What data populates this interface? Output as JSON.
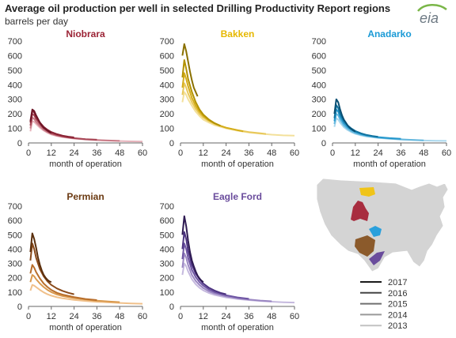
{
  "title": "Average oil production per well in selected Drilling Productivity Report regions",
  "subtitle": "barrels per day",
  "logo_text": "eia",
  "legend": {
    "years": [
      "2017",
      "2016",
      "2015",
      "2014",
      "2013"
    ],
    "colors": [
      "#1a1a1a",
      "#444444",
      "#6f6f6f",
      "#999999",
      "#c2c2c2"
    ]
  },
  "chart_data": [
    {
      "type": "line",
      "title": "Niobrara",
      "title_color": "#9b2335",
      "xlabel": "month of operation",
      "ylabel": "barrels per day",
      "xlim": [
        0,
        60
      ],
      "ylim": [
        0,
        700
      ],
      "xticks": [
        0,
        12,
        24,
        36,
        48,
        60
      ],
      "yticks": [
        0,
        100,
        200,
        300,
        400,
        500,
        600,
        700
      ],
      "series": [
        {
          "name": "2017",
          "color": "#6d1526",
          "x": [
            1,
            2,
            3,
            4,
            5,
            6,
            7,
            8,
            9,
            10,
            11,
            12
          ],
          "y": [
            150,
            230,
            220,
            190,
            165,
            140,
            120,
            105,
            95,
            85,
            75,
            68
          ]
        },
        {
          "name": "2016",
          "color": "#8a2233",
          "x": [
            1,
            2,
            3,
            4,
            6,
            8,
            10,
            12,
            15,
            18,
            21,
            24
          ],
          "y": [
            140,
            220,
            210,
            180,
            140,
            110,
            90,
            75,
            60,
            50,
            43,
            38
          ]
        },
        {
          "name": "2015",
          "color": "#a84656",
          "x": [
            1,
            2,
            3,
            4,
            6,
            8,
            10,
            12,
            15,
            18,
            21,
            24,
            30,
            36
          ],
          "y": [
            120,
            200,
            190,
            165,
            130,
            100,
            82,
            68,
            55,
            45,
            38,
            33,
            26,
            22
          ]
        },
        {
          "name": "2014",
          "color": "#c97b87",
          "x": [
            1,
            2,
            3,
            4,
            6,
            8,
            10,
            12,
            15,
            18,
            24,
            30,
            36,
            42,
            48
          ],
          "y": [
            100,
            175,
            165,
            145,
            115,
            90,
            75,
            62,
            50,
            42,
            32,
            25,
            20,
            17,
            14
          ]
        },
        {
          "name": "2013",
          "color": "#e6b3bb",
          "x": [
            1,
            2,
            3,
            4,
            6,
            8,
            10,
            12,
            15,
            18,
            24,
            30,
            36,
            42,
            48,
            54,
            60
          ],
          "y": [
            80,
            150,
            145,
            130,
            105,
            85,
            70,
            58,
            47,
            40,
            30,
            24,
            19,
            16,
            13,
            11,
            10
          ]
        }
      ]
    },
    {
      "type": "line",
      "title": "Bakken",
      "title_color": "#e6b800",
      "xlabel": "month of operation",
      "ylabel": "barrels per day",
      "xlim": [
        0,
        60
      ],
      "ylim": [
        0,
        700
      ],
      "xticks": [
        0,
        12,
        24,
        36,
        48,
        60
      ],
      "yticks": [
        0,
        100,
        200,
        300,
        400,
        500,
        600,
        700
      ],
      "series": [
        {
          "name": "2017",
          "color": "#8a7000",
          "x": [
            1,
            2,
            3,
            4,
            5,
            6,
            7,
            8,
            9
          ],
          "y": [
            600,
            680,
            630,
            560,
            490,
            430,
            380,
            350,
            320
          ]
        },
        {
          "name": "2016",
          "color": "#b39200",
          "x": [
            1,
            2,
            3,
            4,
            6,
            8,
            10,
            12,
            15,
            18,
            21
          ],
          "y": [
            450,
            570,
            510,
            440,
            350,
            280,
            230,
            195,
            160,
            135,
            118
          ]
        },
        {
          "name": "2015",
          "color": "#d4ad1a",
          "x": [
            1,
            2,
            3,
            4,
            6,
            8,
            10,
            12,
            15,
            18,
            21,
            24,
            30,
            33
          ],
          "y": [
            380,
            480,
            440,
            390,
            310,
            255,
            215,
            185,
            155,
            135,
            118,
            105,
            88,
            80
          ]
        },
        {
          "name": "2014",
          "color": "#e8c85a",
          "x": [
            1,
            2,
            3,
            4,
            6,
            8,
            10,
            12,
            15,
            18,
            24,
            30,
            36,
            42,
            45
          ],
          "y": [
            330,
            410,
            380,
            340,
            280,
            235,
            200,
            175,
            150,
            130,
            105,
            88,
            75,
            66,
            62
          ]
        },
        {
          "name": "2013",
          "color": "#f3e09a",
          "x": [
            1,
            2,
            3,
            4,
            6,
            8,
            10,
            12,
            15,
            18,
            24,
            30,
            36,
            42,
            48,
            54,
            60
          ],
          "y": [
            280,
            350,
            330,
            300,
            255,
            215,
            185,
            160,
            140,
            122,
            100,
            84,
            72,
            64,
            57,
            52,
            50
          ]
        }
      ]
    },
    {
      "type": "line",
      "title": "Anadarko",
      "title_color": "#1a9ad6",
      "xlabel": "month of operation",
      "ylabel": "barrels per day",
      "xlim": [
        0,
        60
      ],
      "ylim": [
        0,
        700
      ],
      "xticks": [
        0,
        12,
        24,
        36,
        48,
        60
      ],
      "yticks": [
        0,
        100,
        200,
        300,
        400,
        500,
        600,
        700
      ],
      "series": [
        {
          "name": "2017",
          "color": "#0a4f73",
          "x": [
            1,
            2,
            3,
            4,
            5,
            6,
            7,
            8,
            9,
            10,
            11,
            12
          ],
          "y": [
            200,
            300,
            280,
            230,
            190,
            160,
            140,
            120,
            105,
            95,
            85,
            78
          ]
        },
        {
          "name": "2016",
          "color": "#11739f",
          "x": [
            1,
            2,
            3,
            4,
            6,
            8,
            10,
            12,
            15,
            18,
            21,
            24
          ],
          "y": [
            170,
            260,
            240,
            200,
            150,
            120,
            98,
            82,
            66,
            55,
            48,
            42
          ]
        },
        {
          "name": "2015",
          "color": "#2597cc",
          "x": [
            1,
            2,
            3,
            4,
            6,
            8,
            10,
            12,
            15,
            18,
            24,
            30,
            36
          ],
          "y": [
            150,
            230,
            215,
            180,
            135,
            108,
            90,
            76,
            62,
            52,
            40,
            33,
            28
          ]
        },
        {
          "name": "2014",
          "color": "#66b8de",
          "x": [
            1,
            2,
            3,
            4,
            6,
            8,
            10,
            12,
            15,
            18,
            24,
            30,
            36,
            42,
            48
          ],
          "y": [
            130,
            200,
            190,
            160,
            120,
            97,
            80,
            68,
            56,
            47,
            37,
            30,
            25,
            21,
            18
          ]
        },
        {
          "name": "2013",
          "color": "#a9d7ed",
          "x": [
            1,
            2,
            3,
            4,
            6,
            8,
            10,
            12,
            15,
            18,
            24,
            30,
            36,
            42,
            48,
            54,
            60
          ],
          "y": [
            110,
            170,
            160,
            140,
            108,
            88,
            74,
            63,
            52,
            44,
            35,
            28,
            23,
            20,
            17,
            15,
            14
          ]
        }
      ]
    },
    {
      "type": "line",
      "title": "Permian",
      "title_color": "#6b3a12",
      "xlabel": "month of operation",
      "ylabel": "barrels per day",
      "xlim": [
        0,
        60
      ],
      "ylim": [
        0,
        700
      ],
      "xticks": [
        0,
        12,
        24,
        36,
        48,
        60
      ],
      "yticks": [
        0,
        100,
        200,
        300,
        400,
        500,
        600,
        700
      ],
      "series": [
        {
          "name": "2017",
          "color": "#5a2f0d",
          "x": [
            1,
            2,
            3,
            4,
            5,
            6,
            7,
            8,
            9,
            10,
            11,
            12
          ],
          "y": [
            380,
            510,
            470,
            410,
            340,
            290,
            250,
            220,
            200,
            185,
            175,
            170
          ]
        },
        {
          "name": "2016",
          "color": "#8a4a1a",
          "x": [
            1,
            2,
            3,
            4,
            6,
            8,
            10,
            12,
            15,
            18,
            21,
            24
          ],
          "y": [
            320,
            440,
            400,
            340,
            260,
            210,
            175,
            150,
            125,
            108,
            95,
            85
          ]
        },
        {
          "name": "2015",
          "color": "#b86e2b",
          "x": [
            1,
            2,
            3,
            4,
            6,
            8,
            10,
            12,
            15,
            18,
            24,
            30,
            36
          ],
          "y": [
            230,
            290,
            270,
            240,
            195,
            160,
            135,
            115,
            95,
            82,
            65,
            52,
            44
          ]
        },
        {
          "name": "2014",
          "color": "#d9994d",
          "x": [
            1,
            2,
            3,
            4,
            6,
            8,
            10,
            12,
            15,
            18,
            24,
            30,
            36,
            42,
            48
          ],
          "y": [
            170,
            220,
            210,
            190,
            160,
            135,
            115,
            100,
            83,
            72,
            58,
            48,
            40,
            34,
            30
          ]
        },
        {
          "name": "2013",
          "color": "#f0c08a",
          "x": [
            1,
            2,
            3,
            4,
            6,
            8,
            10,
            12,
            15,
            18,
            24,
            30,
            36,
            42,
            48,
            54,
            60
          ],
          "y": [
            110,
            150,
            145,
            135,
            115,
            98,
            85,
            75,
            64,
            56,
            45,
            38,
            32,
            28,
            24,
            21,
            19
          ]
        }
      ]
    },
    {
      "type": "line",
      "title": "Eagle Ford",
      "title_color": "#6a4c9c",
      "xlabel": "month of operation",
      "ylabel": "barrels per day",
      "xlim": [
        0,
        60
      ],
      "ylim": [
        0,
        700
      ],
      "xticks": [
        0,
        12,
        24,
        36,
        48,
        60
      ],
      "yticks": [
        0,
        100,
        200,
        300,
        400,
        500,
        600,
        700
      ],
      "series": [
        {
          "name": "2017",
          "color": "#2e1a52",
          "x": [
            1,
            2,
            3,
            4,
            5,
            6,
            7,
            8,
            9,
            10,
            11,
            12
          ],
          "y": [
            500,
            630,
            560,
            460,
            380,
            320,
            280,
            245,
            215,
            195,
            180,
            170
          ]
        },
        {
          "name": "2016",
          "color": "#4c3380",
          "x": [
            1,
            2,
            3,
            4,
            6,
            8,
            10,
            12,
            15,
            18,
            21,
            24
          ],
          "y": [
            400,
            520,
            470,
            390,
            290,
            230,
            190,
            160,
            130,
            110,
            95,
            85
          ]
        },
        {
          "name": "2015",
          "color": "#6e55a3",
          "x": [
            1,
            2,
            3,
            4,
            6,
            8,
            10,
            12,
            15,
            18,
            24,
            30,
            36
          ],
          "y": [
            330,
            440,
            400,
            340,
            255,
            205,
            170,
            145,
            118,
            100,
            78,
            63,
            53
          ]
        },
        {
          "name": "2014",
          "color": "#9a86c2",
          "x": [
            1,
            2,
            3,
            4,
            6,
            8,
            10,
            12,
            15,
            18,
            24,
            30,
            36,
            42,
            48
          ],
          "y": [
            270,
            370,
            340,
            290,
            220,
            178,
            150,
            128,
            105,
            90,
            70,
            57,
            48,
            41,
            36
          ]
        },
        {
          "name": "2013",
          "color": "#c5b9de",
          "x": [
            1,
            2,
            3,
            4,
            6,
            8,
            10,
            12,
            15,
            18,
            24,
            30,
            36,
            42,
            48,
            54,
            60
          ],
          "y": [
            220,
            300,
            280,
            245,
            190,
            155,
            130,
            112,
            93,
            80,
            63,
            52,
            44,
            38,
            33,
            29,
            27
          ]
        }
      ]
    }
  ]
}
